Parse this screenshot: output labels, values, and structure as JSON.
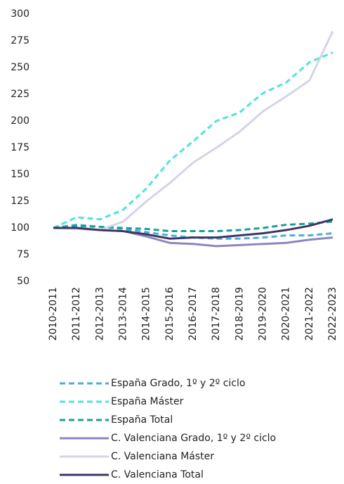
{
  "chart_data": {
    "type": "line",
    "categories": [
      "2010-2011",
      "2011-2012",
      "2012-2013",
      "2013-2014",
      "2014-2015",
      "2015-2016",
      "2016-2017",
      "2017-2018",
      "2018-2019",
      "2019-2020",
      "2020-2021",
      "2021-2022",
      "2022-2023"
    ],
    "series": [
      {
        "name": "España Grado, 1º y 2º ciclo",
        "color": "#4aaed6",
        "dashed": true,
        "values": [
          100,
          103,
          101,
          99,
          96,
          93,
          91,
          90,
          90,
          91,
          93,
          93,
          95
        ]
      },
      {
        "name": "España Máster",
        "color": "#4fe3e0",
        "dashed": true,
        "values": [
          100,
          110,
          108,
          117,
          137,
          163,
          181,
          200,
          208,
          226,
          236,
          255,
          264
        ]
      },
      {
        "name": "España Total",
        "color": "#1a9e9a",
        "dashed": true,
        "values": [
          100,
          102,
          101,
          100,
          99,
          97,
          97,
          97,
          98,
          100,
          103,
          104,
          106
        ]
      },
      {
        "name": "C. Valenciana Grado, 1º y 2º ciclo",
        "color": "#8e86c0",
        "dashed": false,
        "values": [
          100,
          100,
          98,
          97,
          92,
          86,
          85,
          83,
          84,
          85,
          86,
          89,
          91
        ]
      },
      {
        "name": "C. Valenciana Máster",
        "color": "#d6d3ea",
        "dashed": false,
        "values": [
          100,
          99,
          98,
          106,
          125,
          142,
          161,
          175,
          190,
          209,
          223,
          238,
          284
        ]
      },
      {
        "name": "C. Valenciana Total",
        "color": "#3d3566",
        "dashed": false,
        "values": [
          100,
          100,
          98,
          97,
          94,
          90,
          91,
          91,
          93,
          95,
          98,
          102,
          108
        ]
      }
    ],
    "ylim": [
      50,
      300
    ],
    "yticks": [
      50,
      75,
      100,
      125,
      150,
      175,
      200,
      225,
      250,
      275,
      300
    ],
    "grid": false
  }
}
